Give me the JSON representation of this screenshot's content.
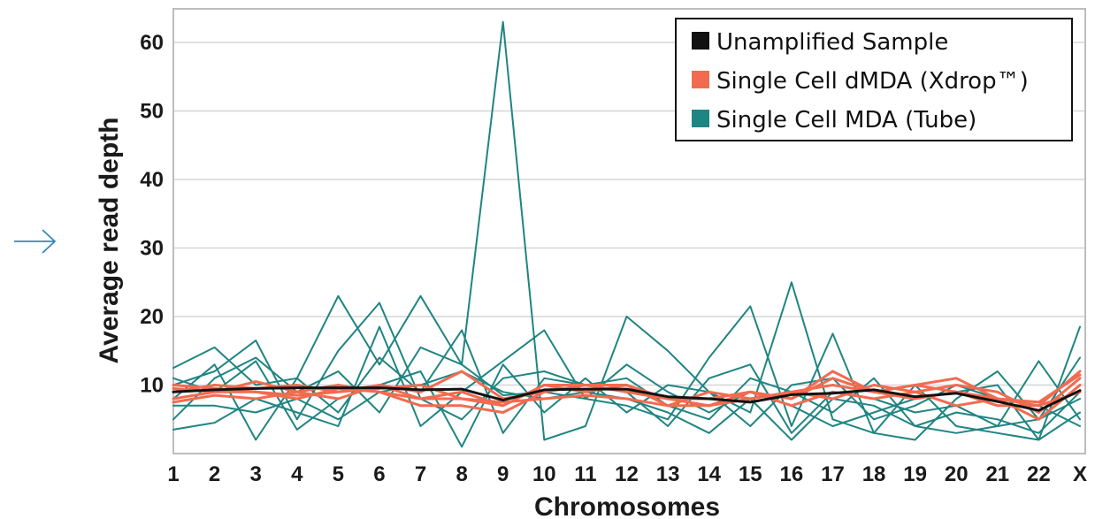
{
  "colors": {
    "unamplified": "#111111",
    "dmda": "#f26b50",
    "mda": "#1f8582",
    "grid": "#d6d6d6",
    "frame": "#bdbdbd",
    "arrow": "#3b86b5"
  },
  "chart_data": {
    "type": "line",
    "title": "",
    "xlabel": "Chromosomes",
    "ylabel": "Average read depth",
    "categories": [
      "1",
      "2",
      "3",
      "4",
      "5",
      "6",
      "7",
      "8",
      "9",
      "10",
      "11",
      "12",
      "13",
      "14",
      "15",
      "16",
      "17",
      "18",
      "19",
      "20",
      "21",
      "22",
      "X"
    ],
    "yticks": [
      10,
      20,
      30,
      40,
      50,
      60
    ],
    "ylim": [
      0,
      65
    ],
    "grid": true,
    "legend_position": "top-right",
    "legend": [
      {
        "label": "Unamplified Sample",
        "color": "#111111"
      },
      {
        "label": "Single Cell dMDA (Xdrop™)",
        "color": "#f26b50"
      },
      {
        "label": "Single Cell MDA (Tube)",
        "color": "#1f8582"
      }
    ],
    "series": [
      {
        "group": "mda",
        "values": [
          12.5,
          15.5,
          10,
          11,
          23,
          13,
          23,
          13,
          63,
          2,
          4,
          20,
          15,
          9,
          6,
          25,
          5,
          3,
          10,
          4,
          3,
          2,
          18.5
        ]
      },
      {
        "group": "mda",
        "values": [
          3.5,
          4.5,
          8,
          6,
          4,
          18.5,
          4,
          9,
          13.5,
          18,
          8,
          7,
          5,
          14,
          21.5,
          4,
          17.5,
          3,
          2,
          8,
          12,
          5,
          14
        ]
      },
      {
        "group": "mda",
        "values": [
          10,
          12,
          16.5,
          5,
          15,
          22,
          8,
          5,
          11,
          12,
          10,
          9,
          4,
          11,
          13,
          3,
          9,
          8,
          6,
          7,
          4,
          13.5,
          5
        ]
      },
      {
        "group": "mda",
        "values": [
          5,
          11,
          14,
          9,
          12,
          6,
          15.5,
          13,
          8.5,
          9,
          8,
          13,
          9,
          6,
          9,
          7,
          4,
          6,
          8,
          9,
          10,
          2,
          6
        ]
      },
      {
        "group": "mda",
        "values": [
          8,
          13,
          2,
          11,
          6,
          14,
          9,
          18,
          3,
          11,
          10,
          11,
          7,
          5,
          11,
          9,
          6,
          11,
          4,
          3,
          4,
          5,
          8
        ]
      },
      {
        "group": "mda",
        "values": [
          11,
          9,
          13.5,
          3.5,
          8,
          10,
          12,
          1,
          13,
          6,
          11,
          6,
          10,
          9,
          4,
          10,
          11,
          5,
          7,
          10,
          8,
          7,
          4
        ]
      },
      {
        "group": "mda",
        "values": [
          7,
          7,
          6,
          8,
          5,
          9,
          10,
          12,
          9,
          8,
          9,
          8,
          6,
          3,
          8,
          2,
          8,
          7,
          4,
          6,
          5,
          3,
          9
        ]
      },
      {
        "group": "dmda",
        "values": [
          9,
          10,
          9.5,
          10,
          9,
          10,
          9,
          12,
          8,
          9,
          10,
          9,
          8,
          7,
          9,
          8,
          12,
          9,
          10,
          11,
          8,
          7,
          12
        ]
      },
      {
        "group": "dmda",
        "values": [
          8,
          9,
          10.5,
          9,
          10,
          9,
          8,
          9,
          7,
          10,
          9,
          10,
          7,
          9,
          8,
          9,
          8,
          10,
          9,
          10,
          9,
          6,
          11
        ]
      },
      {
        "group": "dmda",
        "values": [
          10,
          9.5,
          9,
          8,
          9.5,
          9,
          7,
          7,
          6,
          9,
          10,
          9,
          8,
          8,
          9,
          7,
          9,
          8,
          9,
          7,
          8,
          5,
          10
        ]
      },
      {
        "group": "dmda",
        "values": [
          7.5,
          8.5,
          8,
          9,
          8,
          10,
          8,
          8,
          7.5,
          8,
          8.5,
          8,
          7,
          7,
          8,
          9,
          10,
          9,
          8,
          9,
          7,
          7,
          9
        ]
      },
      {
        "group": "dmda",
        "values": [
          9.5,
          9,
          9,
          8.5,
          9,
          9.5,
          10,
          8,
          7,
          10,
          10,
          10,
          8,
          8,
          9,
          8,
          11,
          9,
          10,
          9,
          8,
          7.5,
          11.5
        ]
      },
      {
        "group": "unamplified",
        "values": [
          9,
          9.3,
          9.5,
          9.6,
          9.6,
          9.6,
          9.3,
          9.4,
          7.8,
          9.3,
          9.4,
          9.4,
          8.3,
          8,
          7.5,
          8.6,
          8.8,
          9.3,
          8.3,
          8.8,
          7.6,
          6.3,
          9.2
        ]
      }
    ]
  }
}
